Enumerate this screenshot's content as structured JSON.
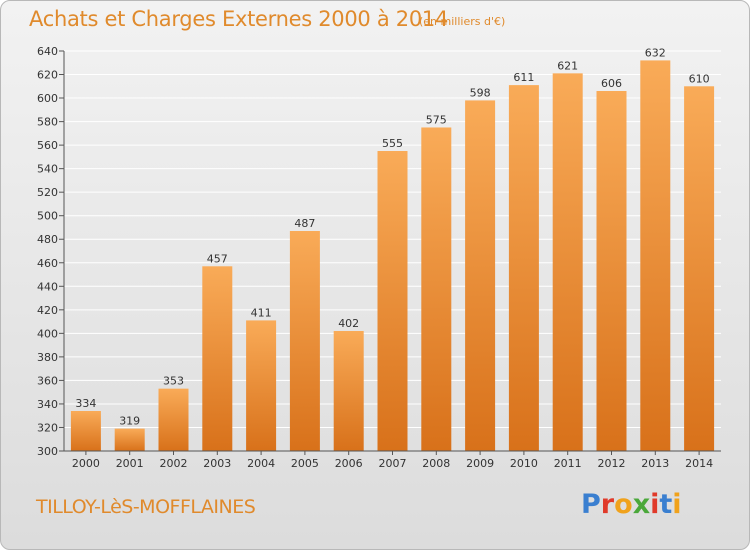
{
  "header": {
    "title": "Achats et Charges Externes 2000 à 2014",
    "unit": "(en milliers d'€)"
  },
  "footer": {
    "city": "TILLOY-LèS-MOFFLAINES",
    "logo": "Proxiti"
  },
  "colors": {
    "bar_light": "#f7a650",
    "bar_dark": "#d9731a",
    "accent_text": "#e08a2c",
    "logo_letters": [
      "#3a7fd0",
      "#e03a2a",
      "#f0a21c",
      "#4aa83a",
      "#e03a2a",
      "#3a7fd0",
      "#f0a21c"
    ]
  },
  "chart_data": {
    "type": "bar",
    "title": "Achats et Charges Externes 2000 à 2014",
    "subtitle": "(en milliers d'€)",
    "categories": [
      "2000",
      "2001",
      "2002",
      "2003",
      "2004",
      "2005",
      "2006",
      "2007",
      "2008",
      "2009",
      "2010",
      "2011",
      "2012",
      "2013",
      "2014"
    ],
    "values": [
      334,
      319,
      353,
      457,
      411,
      487,
      402,
      555,
      575,
      598,
      611,
      621,
      606,
      632,
      610
    ],
    "ylim": [
      300,
      640
    ],
    "yticks": [
      300,
      320,
      340,
      360,
      380,
      400,
      420,
      440,
      460,
      480,
      500,
      520,
      540,
      560,
      580,
      600,
      620,
      640
    ],
    "grid": true,
    "data_labels": true
  }
}
